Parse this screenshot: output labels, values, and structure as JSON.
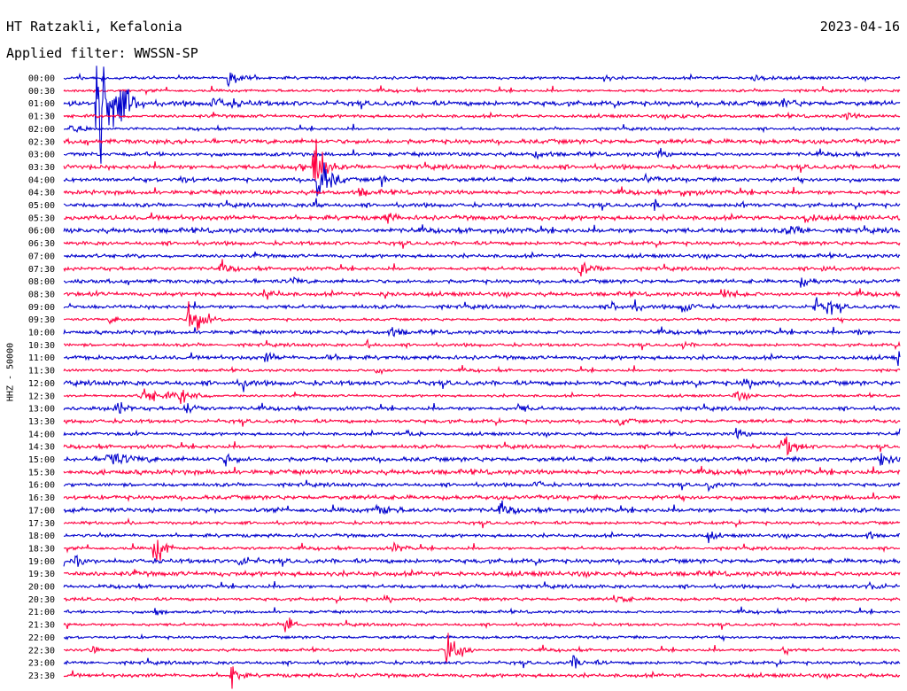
{
  "header": {
    "station": "HT Ratzakli, Kefalonia",
    "date": "2023-04-16",
    "filter_label": "Applied filter: WWSSN-SP"
  },
  "chart_data": {
    "type": "line",
    "ylabel": "HHZ - 50000",
    "trace_colors": [
      "#0000cc",
      "#ff0040"
    ],
    "rows": [
      {
        "label": "00:00"
      },
      {
        "label": "00:30"
      },
      {
        "label": "01:00"
      },
      {
        "label": "01:30"
      },
      {
        "label": "02:00"
      },
      {
        "label": "02:30"
      },
      {
        "label": "03:00"
      },
      {
        "label": "03:30"
      },
      {
        "label": "04:00"
      },
      {
        "label": "04:30"
      },
      {
        "label": "05:00"
      },
      {
        "label": "05:30"
      },
      {
        "label": "06:00"
      },
      {
        "label": "06:30"
      },
      {
        "label": "07:00"
      },
      {
        "label": "07:30"
      },
      {
        "label": "08:00"
      },
      {
        "label": "08:30"
      },
      {
        "label": "09:00"
      },
      {
        "label": "09:30"
      },
      {
        "label": "10:00"
      },
      {
        "label": "10:30"
      },
      {
        "label": "11:00"
      },
      {
        "label": "11:30"
      },
      {
        "label": "12:00"
      },
      {
        "label": "12:30"
      },
      {
        "label": "13:00"
      },
      {
        "label": "13:30"
      },
      {
        "label": "14:00"
      },
      {
        "label": "14:30"
      },
      {
        "label": "15:00"
      },
      {
        "label": "15:30"
      },
      {
        "label": "16:00"
      },
      {
        "label": "16:30"
      },
      {
        "label": "17:00"
      },
      {
        "label": "17:30"
      },
      {
        "label": "18:00"
      },
      {
        "label": "18:30"
      },
      {
        "label": "19:00"
      },
      {
        "label": "19:30"
      },
      {
        "label": "20:00"
      },
      {
        "label": "20:30"
      },
      {
        "label": "21:00"
      },
      {
        "label": "21:30"
      },
      {
        "label": "22:00"
      },
      {
        "label": "22:30"
      },
      {
        "label": "23:00"
      },
      {
        "label": "23:30"
      }
    ]
  }
}
